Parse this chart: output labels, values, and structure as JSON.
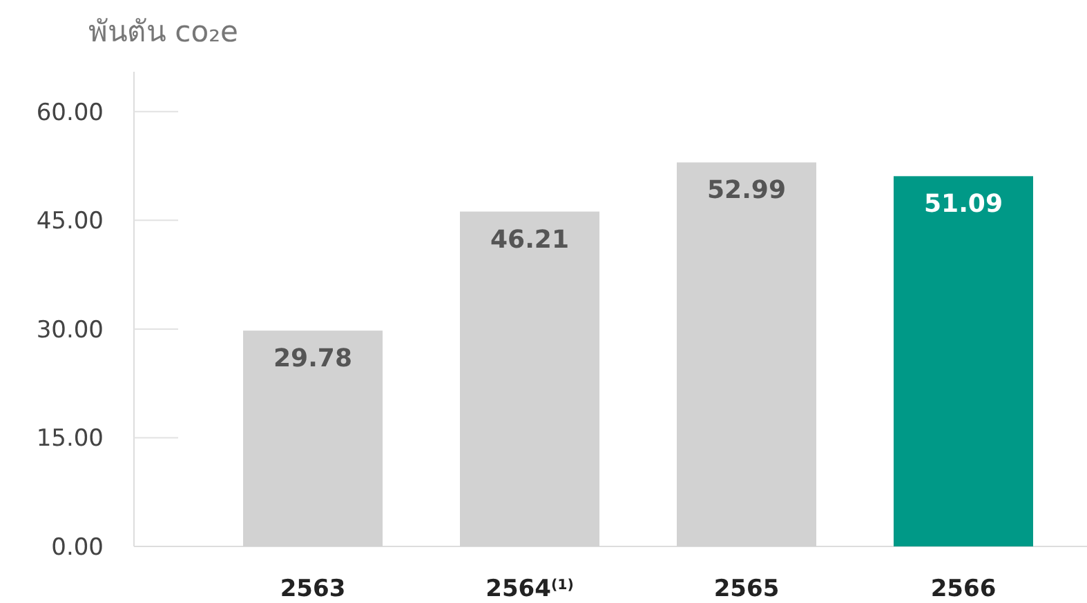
{
  "chart_data": {
    "type": "bar",
    "ylabel": "พันตัน co₂e",
    "categories": [
      "2563",
      "2564$^{(1)}$",
      "2565",
      "2566"
    ],
    "values": [
      29.78,
      46.21,
      52.99,
      51.09
    ],
    "colors": [
      "#d2d2d2",
      "#d2d2d2",
      "#d2d2d2",
      "#009987"
    ],
    "ylim": [
      0,
      65.5
    ],
    "yticks": [
      {
        "value": 0,
        "label": "0.00"
      },
      {
        "value": 15,
        "label": "15.00"
      },
      {
        "value": 30,
        "label": "30.00"
      },
      {
        "value": 45,
        "label": "45.00"
      },
      {
        "value": 60,
        "label": "60.00"
      }
    ],
    "data_labels": true,
    "grid": false
  }
}
